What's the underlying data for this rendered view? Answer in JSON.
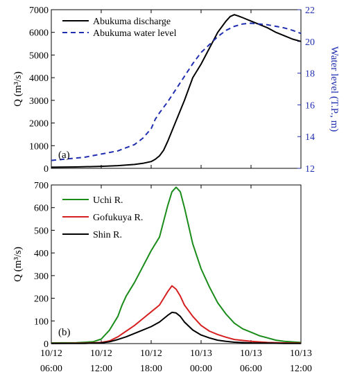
{
  "chart_data": [
    {
      "type": "line",
      "panel_label": "(a)",
      "ylabel": "Q (m³/s)",
      "ylabel_right": "Water level (T.P., m)",
      "ylim": [
        0,
        7000
      ],
      "ylim_right": [
        12,
        22
      ],
      "yticks": [
        "0",
        "1000",
        "2000",
        "3000",
        "4000",
        "5000",
        "6000",
        "7000"
      ],
      "yticks_right": [
        "12",
        "14",
        "16",
        "18",
        "20",
        "22"
      ],
      "grid": false,
      "legend_position": "top-left",
      "series": [
        {
          "name": "Abukuma discharge",
          "axis": "left",
          "color": "#000000",
          "dash": "solid",
          "x": [
            6,
            9,
            12,
            14,
            16,
            17,
            18,
            18.5,
            19,
            19.5,
            20,
            21,
            22,
            23,
            24,
            25,
            26,
            27,
            27.5,
            28,
            28.5,
            29,
            30,
            31,
            32,
            33,
            34,
            35,
            36
          ],
          "y": [
            50,
            60,
            90,
            120,
            170,
            220,
            300,
            400,
            550,
            800,
            1200,
            2100,
            3000,
            4000,
            4600,
            5300,
            6000,
            6500,
            6700,
            6780,
            6720,
            6650,
            6500,
            6350,
            6200,
            6000,
            5850,
            5700,
            5600
          ]
        },
        {
          "name": "Abukuma water level",
          "axis": "right",
          "color": "#1f2db0",
          "dash": "dashed",
          "x": [
            6,
            8,
            10,
            12,
            14,
            15,
            16,
            17,
            17.5,
            18,
            18.5,
            19,
            20,
            21,
            22,
            23,
            24,
            25,
            26,
            27,
            28,
            29,
            30,
            31,
            32,
            33,
            34,
            35,
            36
          ],
          "y": [
            12.5,
            12.6,
            12.7,
            12.9,
            13.1,
            13.3,
            13.5,
            13.9,
            14.2,
            14.5,
            15.1,
            15.5,
            16.2,
            17.0,
            17.8,
            18.6,
            19.3,
            19.8,
            20.3,
            20.7,
            20.95,
            21.1,
            21.15,
            21.1,
            21.05,
            20.95,
            20.85,
            20.7,
            20.5
          ]
        }
      ]
    },
    {
      "type": "line",
      "panel_label": "(b)",
      "ylabel": "Q (m³/s)",
      "ylim": [
        0,
        700
      ],
      "yticks": [
        "0",
        "100",
        "200",
        "300",
        "400",
        "500",
        "600",
        "700"
      ],
      "grid": false,
      "legend_position": "top-left",
      "xticks": [
        {
          "value": 6,
          "line1": "10/12",
          "line2": "06:00"
        },
        {
          "value": 12,
          "line1": "10/12",
          "line2": "12:00"
        },
        {
          "value": 18,
          "line1": "10/12",
          "line2": "18:00"
        },
        {
          "value": 24,
          "line1": "10/13",
          "line2": "00:00"
        },
        {
          "value": 30,
          "line1": "10/13",
          "line2": "06:00"
        },
        {
          "value": 36,
          "line1": "10/13",
          "line2": "12:00"
        }
      ],
      "xlim": [
        6,
        36
      ],
      "series": [
        {
          "name": "Uchi R.",
          "color": "#1a8c1a",
          "x": [
            6,
            9,
            11,
            12,
            13,
            14,
            14.5,
            15,
            16,
            17,
            18,
            19,
            19.5,
            20,
            20.5,
            21,
            21.5,
            22,
            22.5,
            23,
            24,
            25,
            26,
            27,
            28,
            29,
            30,
            31,
            32,
            33,
            34,
            36
          ],
          "y": [
            3,
            4,
            8,
            20,
            60,
            120,
            170,
            210,
            270,
            340,
            410,
            470,
            540,
            610,
            670,
            690,
            670,
            600,
            520,
            440,
            330,
            250,
            180,
            130,
            90,
            65,
            50,
            35,
            25,
            15,
            10,
            5
          ]
        },
        {
          "name": "Gofukuya R.",
          "color": "#d62020",
          "x": [
            6,
            10,
            12,
            13,
            14,
            15,
            16,
            17,
            18,
            19,
            19.5,
            20,
            20.5,
            21,
            21.5,
            22,
            23,
            24,
            25,
            26,
            27,
            28,
            30,
            32,
            34,
            36
          ],
          "y": [
            1,
            2,
            5,
            12,
            30,
            55,
            80,
            110,
            140,
            170,
            200,
            230,
            255,
            240,
            210,
            170,
            120,
            80,
            55,
            40,
            28,
            18,
            10,
            5,
            3,
            2
          ]
        },
        {
          "name": "Shin R.",
          "color": "#000000",
          "x": [
            6,
            10,
            12,
            13,
            14,
            15,
            16,
            17,
            18,
            19,
            20,
            20.5,
            21,
            21.5,
            22,
            23,
            24,
            25,
            26,
            27,
            28,
            30,
            32,
            34,
            36
          ],
          "y": [
            1,
            1,
            3,
            8,
            18,
            30,
            45,
            60,
            75,
            95,
            125,
            138,
            135,
            120,
            95,
            60,
            38,
            25,
            15,
            10,
            6,
            3,
            2,
            1,
            1
          ]
        }
      ]
    }
  ]
}
